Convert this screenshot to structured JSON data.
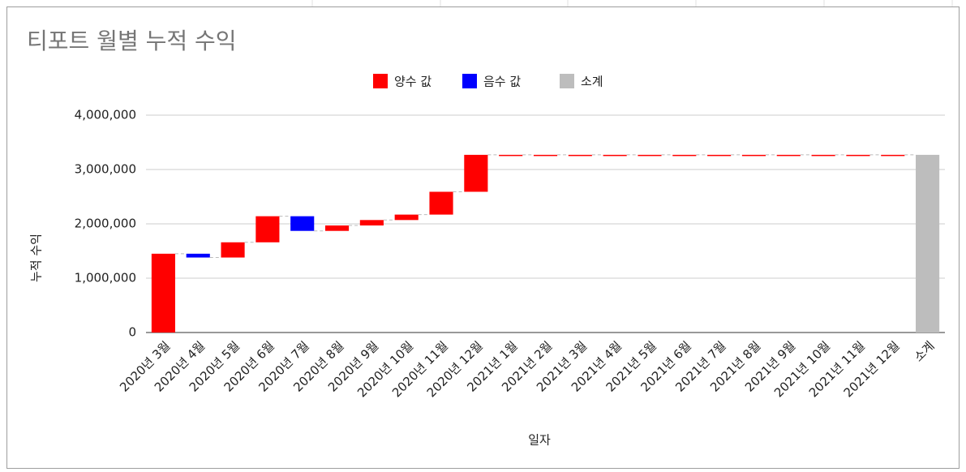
{
  "chart_data": {
    "type": "waterfall",
    "title": "티포트 월별 누적 수익",
    "x_label": "일자",
    "y_label": "누적 수익",
    "series": [
      {
        "name": "양수 값",
        "color": "#ff0000"
      },
      {
        "name": "음수 값",
        "color": "#0000ff"
      },
      {
        "name": "소계",
        "color": "#bdbdbd"
      }
    ],
    "categories": [
      "2020년 3월",
      "2020년 4월",
      "2020년 5월",
      "2020년 6월",
      "2020년 7월",
      "2020년 8월",
      "2020년 9월",
      "2020년 10월",
      "2020년 11월",
      "2020년 12월",
      "2021년 1월",
      "2021년 2월",
      "2021년 3월",
      "2021년 4월",
      "2021년 5월",
      "2021년 6월",
      "2021년 7월",
      "2021년 8월",
      "2021년 9월",
      "2021년 10월",
      "2021년 11월",
      "2021년 12월",
      "소계"
    ],
    "values": [
      1450000,
      -70000,
      280000,
      480000,
      -270000,
      100000,
      100000,
      100000,
      420000,
      680000,
      0,
      0,
      0,
      0,
      0,
      0,
      0,
      0,
      0,
      0,
      0,
      0,
      3270000
    ],
    "ylim": [
      0,
      4000000
    ],
    "yticks": [
      0,
      {
        "value": 1000000,
        "label": "1,000,000"
      },
      {
        "value": 2000000,
        "label": "2,000,000"
      },
      {
        "value": 3000000,
        "label": "3,000,000"
      },
      {
        "value": 4000000,
        "label": "4,000,000"
      }
    ],
    "grid": true,
    "legend": "top"
  }
}
